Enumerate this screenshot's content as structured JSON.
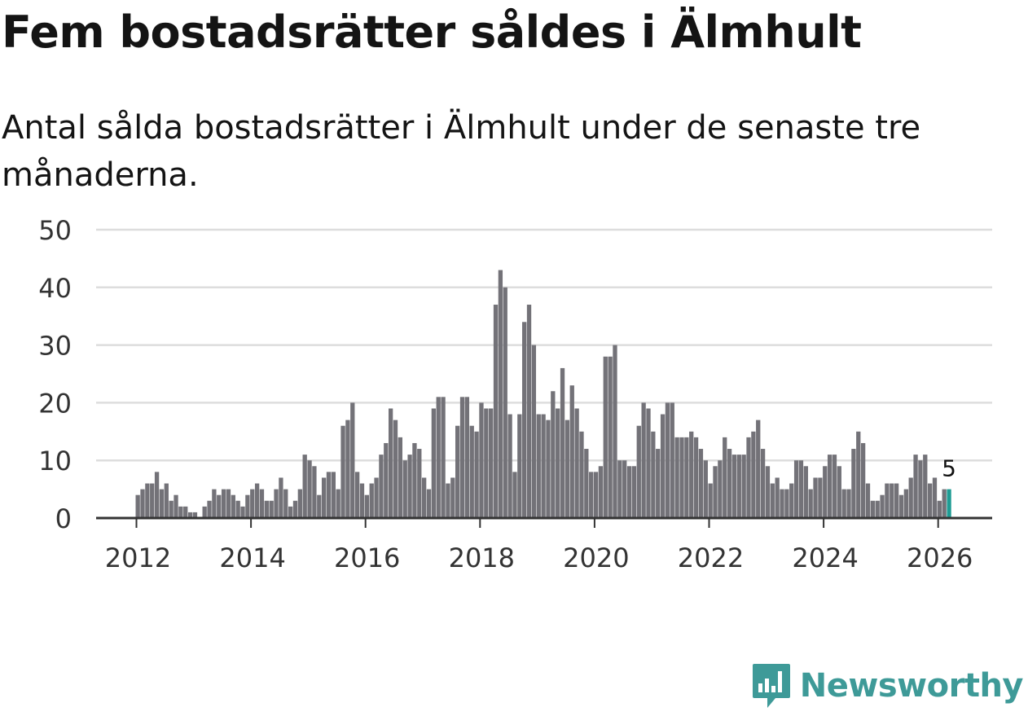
{
  "title": "Fem bostadsrätter såldes i Älmhult",
  "subtitle": "Antal sålda bostadsrätter i Älmhult under de senaste tre månaderna.",
  "brand": {
    "name": "Newsworthy",
    "color": "#3e9a98"
  },
  "colors": {
    "bar": "#737278",
    "highlight": "#1f9c94",
    "grid": "#dddddd",
    "axis": "#333333",
    "text": "#333333"
  },
  "chart_data": {
    "type": "bar",
    "title": "Fem bostadsrätter såldes i Älmhult",
    "xlabel": "",
    "ylabel": "",
    "ylim": [
      0,
      50
    ],
    "yticks": [
      0,
      10,
      20,
      30,
      40,
      50
    ],
    "xticks": [
      "2012",
      "2014",
      "2016",
      "2018",
      "2020",
      "2022",
      "2024",
      "2026"
    ],
    "start": "2012-01",
    "annotation": {
      "label": "5",
      "index": 170
    },
    "values": [
      4,
      5,
      6,
      6,
      8,
      5,
      6,
      3,
      4,
      2,
      2,
      1,
      1,
      0,
      2,
      3,
      5,
      4,
      5,
      5,
      4,
      3,
      2,
      4,
      5,
      6,
      5,
      3,
      3,
      5,
      7,
      5,
      2,
      3,
      5,
      11,
      10,
      9,
      4,
      7,
      8,
      8,
      5,
      16,
      17,
      20,
      8,
      6,
      4,
      6,
      7,
      11,
      13,
      19,
      17,
      14,
      10,
      11,
      13,
      12,
      7,
      5,
      19,
      21,
      21,
      6,
      7,
      16,
      21,
      21,
      16,
      15,
      20,
      19,
      19,
      37,
      43,
      40,
      18,
      8,
      18,
      34,
      37,
      30,
      18,
      18,
      17,
      22,
      19,
      26,
      17,
      23,
      19,
      15,
      12,
      8,
      8,
      9,
      28,
      28,
      30,
      10,
      10,
      9,
      9,
      16,
      20,
      19,
      15,
      12,
      18,
      20,
      20,
      14,
      14,
      14,
      15,
      14,
      12,
      10,
      6,
      9,
      10,
      14,
      12,
      11,
      11,
      11,
      14,
      15,
      17,
      12,
      9,
      6,
      7,
      5,
      5,
      6,
      10,
      10,
      9,
      5,
      7,
      7,
      9,
      11,
      11,
      9,
      5,
      5,
      12,
      15,
      13,
      6,
      3,
      3,
      4,
      6,
      6,
      6,
      4,
      5,
      7,
      11,
      10,
      11,
      6,
      7,
      3,
      5,
      5
    ]
  }
}
